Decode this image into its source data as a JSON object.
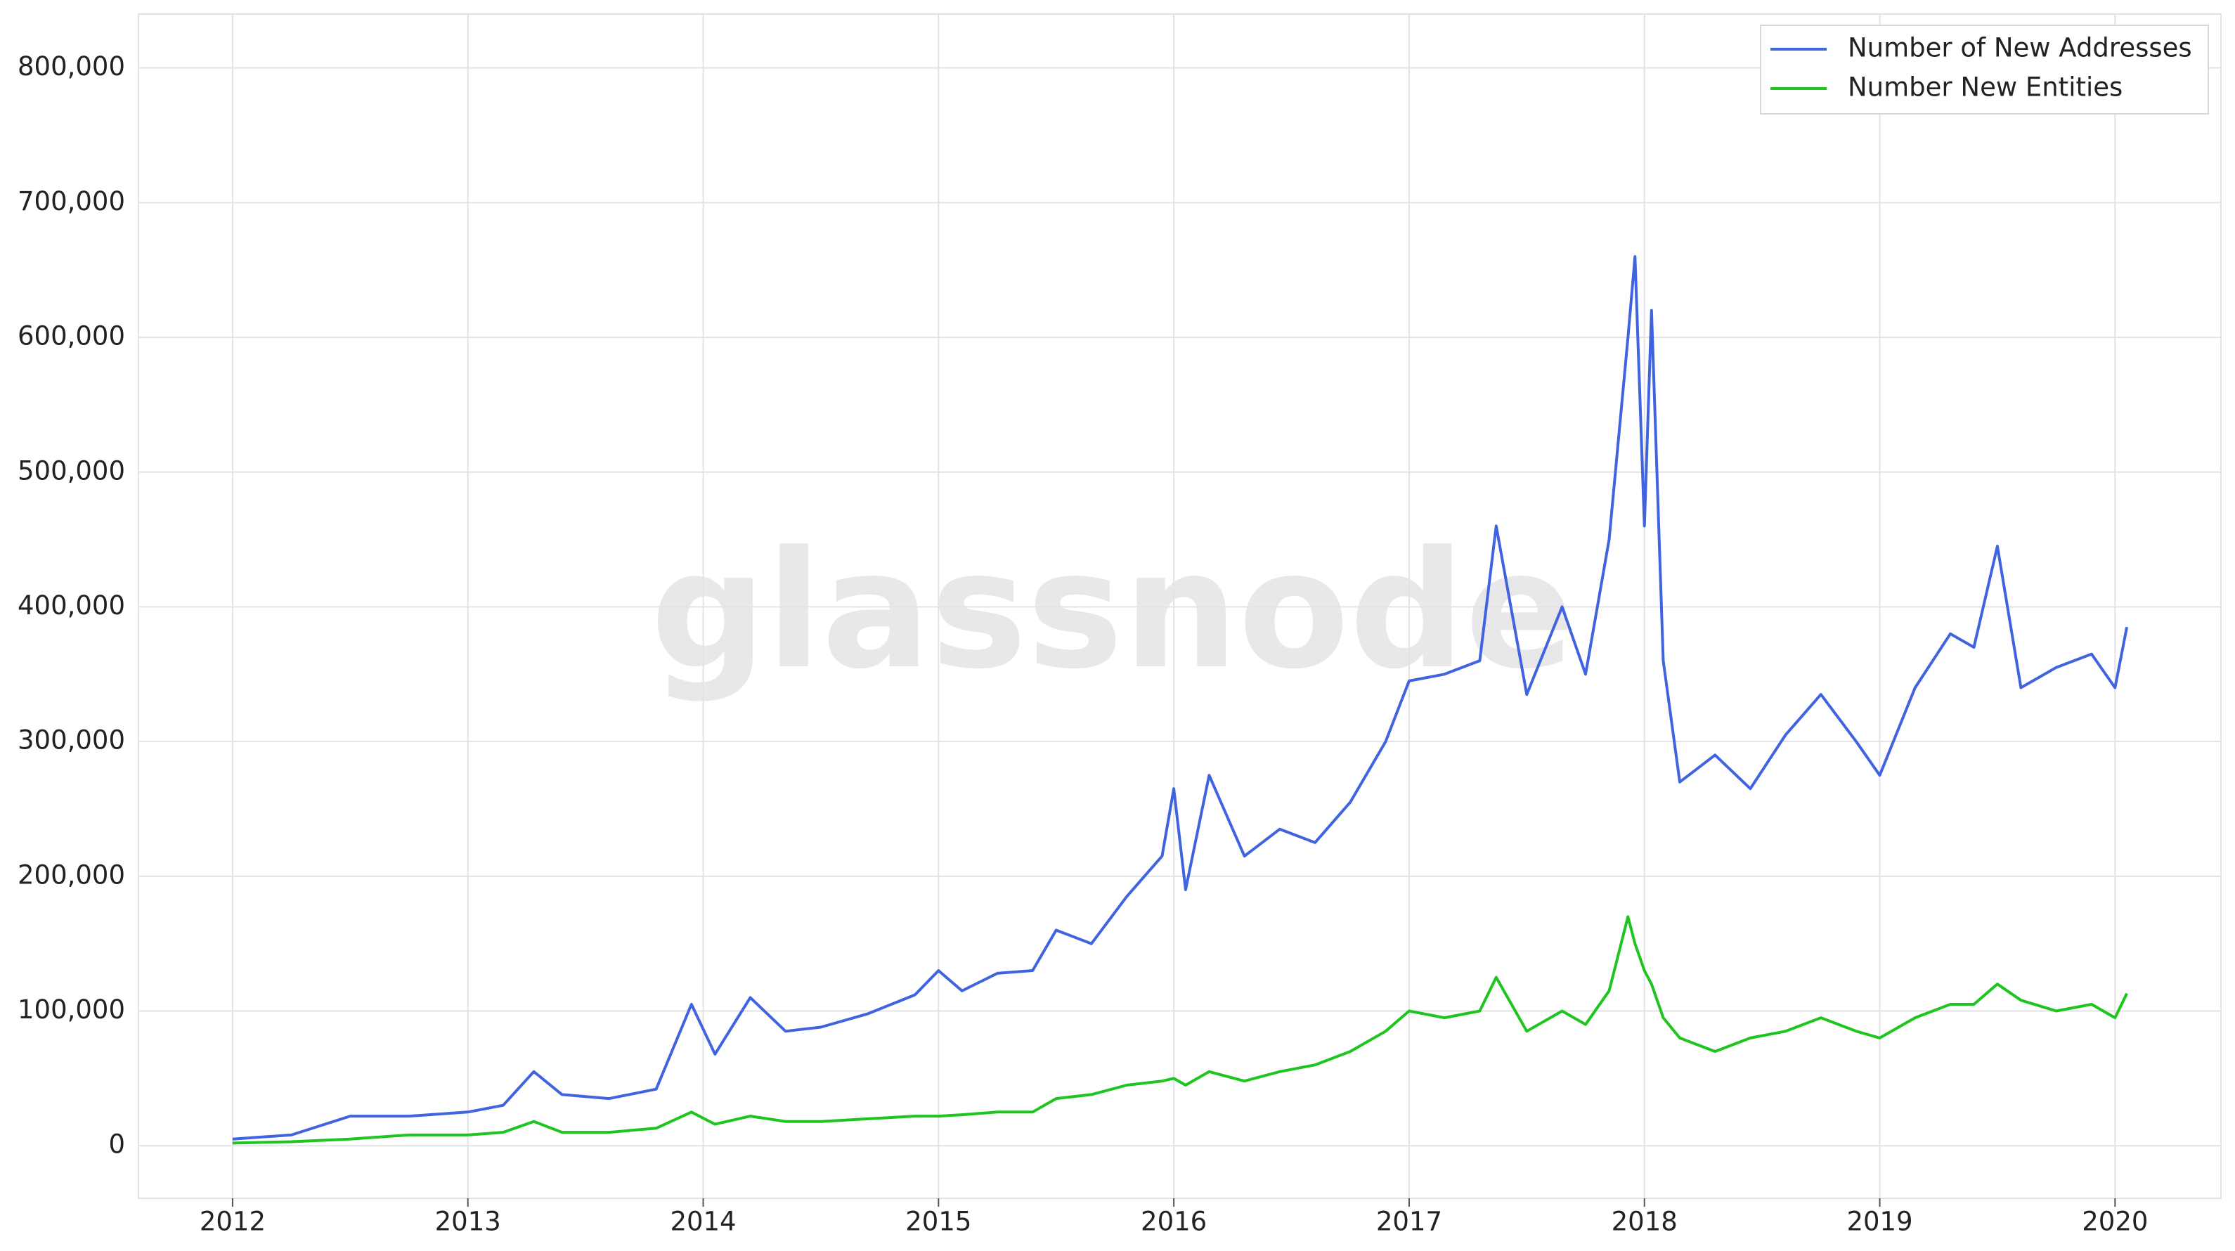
{
  "chart_data": {
    "type": "line",
    "watermark": "glassnode",
    "x": [
      2012,
      2012.25,
      2012.5,
      2012.75,
      2013,
      2013.15,
      2013.28,
      2013.4,
      2013.6,
      2013.8,
      2013.95,
      2014.05,
      2014.2,
      2014.35,
      2014.5,
      2014.7,
      2014.9,
      2015,
      2015.1,
      2015.25,
      2015.4,
      2015.5,
      2015.65,
      2015.8,
      2015.95,
      2016,
      2016.05,
      2016.15,
      2016.3,
      2016.45,
      2016.6,
      2016.75,
      2016.9,
      2017,
      2017.15,
      2017.3,
      2017.37,
      2017.5,
      2017.65,
      2017.75,
      2017.85,
      2017.93,
      2017.96,
      2018,
      2018.03,
      2018.08,
      2018.15,
      2018.3,
      2018.45,
      2018.6,
      2018.75,
      2018.9,
      2019,
      2019.15,
      2019.3,
      2019.4,
      2019.5,
      2019.6,
      2019.75,
      2019.9,
      2020,
      2020.05
    ],
    "series": [
      {
        "name": "Number of New Addresses",
        "color": "#4063e0",
        "values": [
          5000,
          8000,
          22000,
          22000,
          25000,
          30000,
          55000,
          38000,
          35000,
          42000,
          105000,
          68000,
          110000,
          85000,
          88000,
          98000,
          112000,
          130000,
          115000,
          128000,
          130000,
          160000,
          150000,
          185000,
          215000,
          265000,
          190000,
          275000,
          215000,
          235000,
          225000,
          255000,
          300000,
          345000,
          350000,
          360000,
          460000,
          335000,
          400000,
          350000,
          450000,
          600000,
          660000,
          460000,
          620000,
          360000,
          270000,
          290000,
          265000,
          305000,
          335000,
          300000,
          275000,
          340000,
          380000,
          370000,
          445000,
          340000,
          355000,
          365000,
          340000,
          385000
        ]
      },
      {
        "name": "Number New Entities",
        "color": "#1ec51e",
        "values": [
          2000,
          3000,
          5000,
          8000,
          8000,
          10000,
          18000,
          10000,
          10000,
          13000,
          25000,
          16000,
          22000,
          18000,
          18000,
          20000,
          22000,
          22000,
          23000,
          25000,
          25000,
          35000,
          38000,
          45000,
          48000,
          50000,
          45000,
          55000,
          48000,
          55000,
          60000,
          70000,
          85000,
          100000,
          95000,
          100000,
          125000,
          85000,
          100000,
          90000,
          115000,
          170000,
          150000,
          130000,
          120000,
          95000,
          80000,
          70000,
          80000,
          85000,
          95000,
          85000,
          80000,
          95000,
          105000,
          105000,
          120000,
          108000,
          100000,
          105000,
          95000,
          113000
        ]
      }
    ],
    "xlim": [
      2011.6,
      2020.45
    ],
    "xticks": [
      2012,
      2013,
      2014,
      2015,
      2016,
      2017,
      2018,
      2019,
      2020
    ],
    "ylim": [
      -39000,
      840000
    ],
    "yticks": [
      0,
      {
        "value": 100000,
        "label": "100,000"
      },
      {
        "value": 200000,
        "label": "200,000"
      },
      {
        "value": 300000,
        "label": "300,000"
      },
      {
        "value": 400000,
        "label": "400,000"
      },
      {
        "value": 500000,
        "label": "500,000"
      },
      {
        "value": 600000,
        "label": "600,000"
      },
      {
        "value": 700000,
        "label": "700,000"
      },
      {
        "value": 800000,
        "label": "800,000"
      }
    ],
    "grid": true,
    "legend": "upper-right"
  }
}
